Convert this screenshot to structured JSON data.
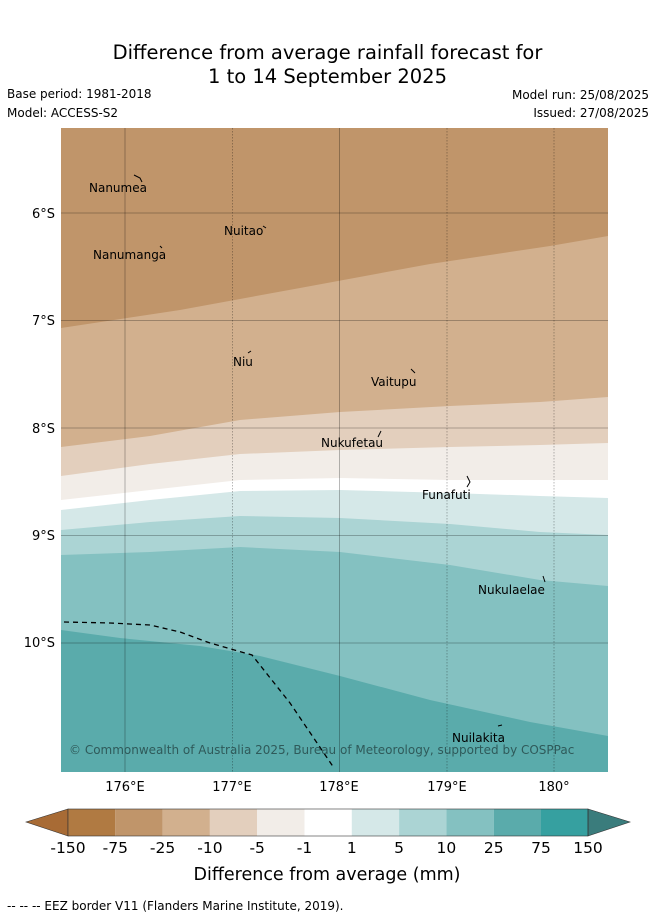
{
  "title_line1": "Difference from average rainfall forecast for",
  "title_line2": "1 to 14 September 2025",
  "base_period": "Base period: 1981-2018",
  "model": "Model: ACCESS-S2",
  "model_run": "Model run: 25/08/2025",
  "issued": "Issued: 27/08/2025",
  "copyright": "© Commonwealth of Australia 2025, Bureau of Meteorology, supported by COSPPac",
  "map": {
    "lon_ticks": [
      "176°E",
      "177°E",
      "178°E",
      "179°E",
      "180°"
    ],
    "lat_ticks": [
      "6°S",
      "7°S",
      "8°S",
      "9°S",
      "10°S"
    ],
    "places": [
      "Nanumea",
      "Nuitao",
      "Nanumanga",
      "Niu",
      "Vaitupu",
      "Nukufetau",
      "Funafuti",
      "Nukulaelae",
      "Nuilakita"
    ]
  },
  "colorbar": {
    "ticks": [
      "-150",
      "-75",
      "-25",
      "-10",
      "-5",
      "-1",
      "1",
      "5",
      "10",
      "25",
      "75",
      "150"
    ],
    "colors": [
      "#a86b35",
      "#b07a42",
      "#c0956a",
      "#d2b08e",
      "#e3cfbd",
      "#f2ede8",
      "#ffffff",
      "#d5e8e8",
      "#abd4d4",
      "#84c1c1",
      "#5aabab",
      "#36a0a0",
      "#3a7c7c"
    ],
    "label": "Difference from average (mm)"
  },
  "legend_note": "--  --  -- EEZ border V11 (Flanders Marine Institute, 2019)."
}
